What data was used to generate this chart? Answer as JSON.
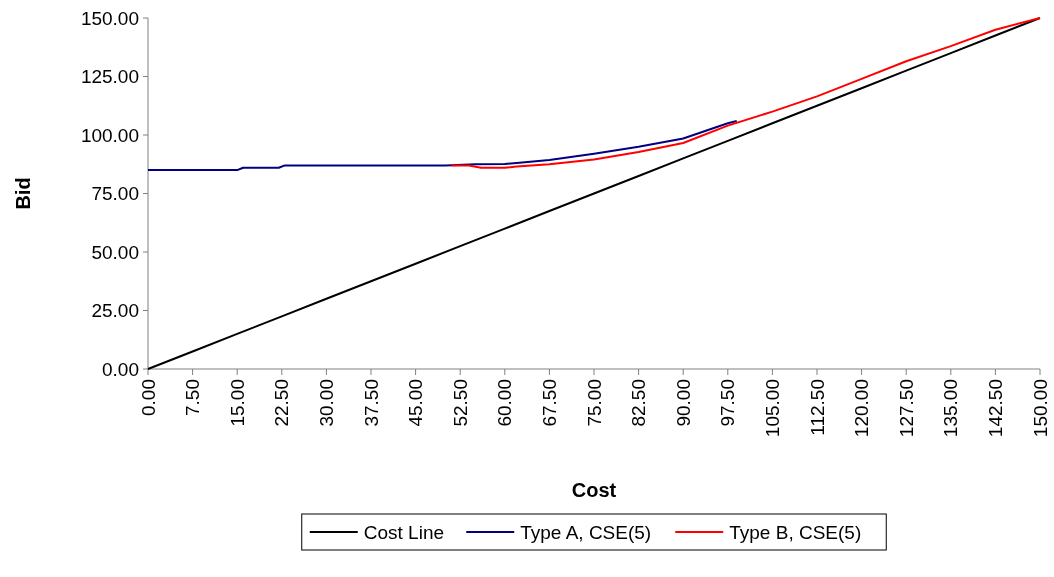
{
  "chart_data": {
    "type": "line",
    "xlabel": "Cost",
    "ylabel": "Bid",
    "xlim": [
      0,
      150
    ],
    "xticks": [
      {
        "value": 0,
        "label": "0.00"
      },
      {
        "value": 7.5,
        "label": "7.50"
      },
      {
        "value": 15,
        "label": "15.00"
      },
      {
        "value": 22.5,
        "label": "22.50"
      },
      {
        "value": 30,
        "label": "30.00"
      },
      {
        "value": 37.5,
        "label": "37.50"
      },
      {
        "value": 45,
        "label": "45.00"
      },
      {
        "value": 52.5,
        "label": "52.50"
      },
      {
        "value": 60,
        "label": "60.00"
      },
      {
        "value": 67.5,
        "label": "67.50"
      },
      {
        "value": 75,
        "label": "75.00"
      },
      {
        "value": 82.5,
        "label": "82.50"
      },
      {
        "value": 90,
        "label": "90.00"
      },
      {
        "value": 97.5,
        "label": "97.50"
      },
      {
        "value": 105,
        "label": "105.00"
      },
      {
        "value": 112.5,
        "label": "112.50"
      },
      {
        "value": 120,
        "label": "120.00"
      },
      {
        "value": 127.5,
        "label": "127.50"
      },
      {
        "value": 135,
        "label": "135.00"
      },
      {
        "value": 142.5,
        "label": "142.50"
      },
      {
        "value": 150,
        "label": "150.00"
      }
    ],
    "ylim": [
      0,
      150
    ],
    "yticks": [
      {
        "value": 0,
        "label": "0.00"
      },
      {
        "value": 25,
        "label": "25.00"
      },
      {
        "value": 50,
        "label": "50.00"
      },
      {
        "value": 75,
        "label": "75.00"
      },
      {
        "value": 100,
        "label": "100.00"
      },
      {
        "value": 125,
        "label": "125.00"
      },
      {
        "value": 150,
        "label": "150.00"
      }
    ],
    "grid": false,
    "legend": "bottom",
    "line_style": "solid",
    "marker": "none",
    "series": [
      {
        "name": "Cost Line",
        "color": "#000000",
        "x": [
          0,
          7.5,
          15,
          22.5,
          30,
          37.5,
          45,
          52.5,
          60,
          67.5,
          75,
          82.5,
          90,
          97.5,
          105,
          112.5,
          120,
          127.5,
          135,
          142.5,
          150
        ],
        "values": [
          0,
          7.5,
          15,
          22.5,
          30,
          37.5,
          45,
          52.5,
          60,
          67.5,
          75,
          82.5,
          90,
          97.5,
          105,
          112.5,
          120,
          127.5,
          135,
          142.5,
          150
        ]
      },
      {
        "name": "Type A, CSE(5)",
        "color": "#000080",
        "x": [
          0,
          15,
          16,
          22,
          23,
          50,
          55,
          60,
          62,
          67.5,
          75,
          82.5,
          90,
          97.5,
          99
        ],
        "values": [
          85,
          85,
          86,
          86,
          87,
          87,
          87.5,
          87.6,
          88,
          89.3,
          92,
          95,
          98.5,
          105,
          106
        ]
      },
      {
        "name": "Type B, CSE(5)",
        "color": "#ff0000",
        "x": [
          51,
          54,
          56,
          60,
          62,
          67.5,
          75,
          82.5,
          90,
          97.5,
          105,
          112.5,
          120,
          127.5,
          135,
          142.5,
          150
        ],
        "values": [
          87,
          87,
          86,
          86,
          86.5,
          87.5,
          89.5,
          92.7,
          96.6,
          104,
          110,
          116.5,
          124,
          131.5,
          138,
          145,
          150
        ]
      }
    ]
  }
}
